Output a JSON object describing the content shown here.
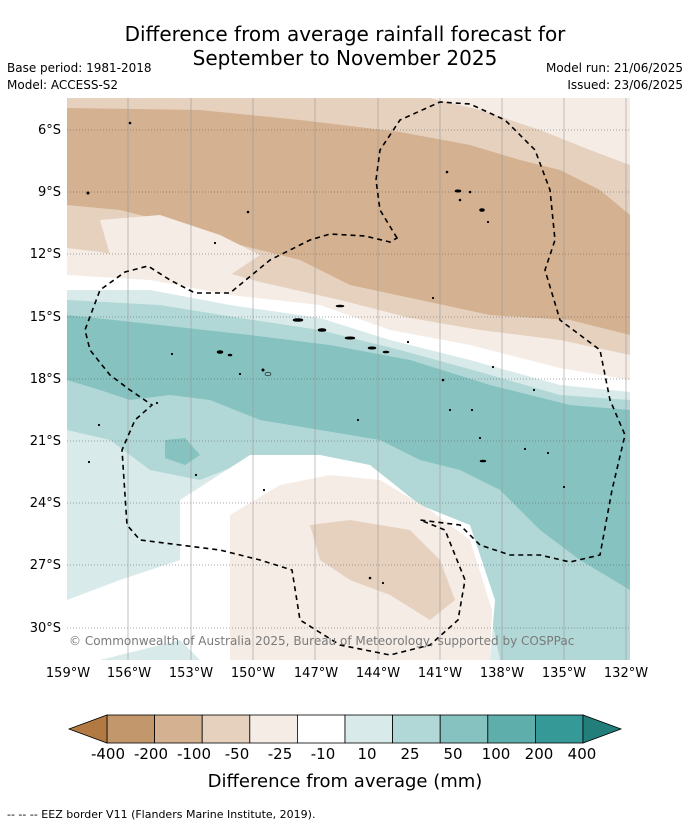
{
  "title": {
    "line1": "Difference from average rainfall forecast for",
    "line2": "September to November 2025"
  },
  "meta": {
    "base_period": "Base period: 1981-2018",
    "model": "Model: ACCESS-S2",
    "model_run": "Model run: 21/06/2025",
    "issued": "Issued: 23/06/2025"
  },
  "axes": {
    "lat_ticks": [
      "6°S",
      "9°S",
      "12°S",
      "15°S",
      "18°S",
      "21°S",
      "24°S",
      "27°S",
      "30°S"
    ],
    "lon_ticks": [
      "159°W",
      "156°W",
      "153°W",
      "150°W",
      "147°W",
      "144°W",
      "141°W",
      "138°W",
      "135°W",
      "132°W"
    ]
  },
  "copyright": "© Commonwealth of Australia 2025, Bureau of Meteorology, supported by COSPPac",
  "colorbar": {
    "ticks": [
      "-400",
      "-200",
      "-100",
      "-50",
      "-25",
      "-10",
      "10",
      "25",
      "50",
      "100",
      "200",
      "400"
    ],
    "label": "Difference from average (mm)",
    "colors": [
      "#b27a42",
      "#c3976c",
      "#d4b190",
      "#e6d1bf",
      "#f5ece6",
      "#ffffff",
      "#d8ebea",
      "#b1d8d6",
      "#86c3c0",
      "#5eaeab",
      "#359a97",
      "#217e7a"
    ]
  },
  "footnote": "--  --  -- EEZ border V11 (Flanders Marine Institute, 2019)."
}
